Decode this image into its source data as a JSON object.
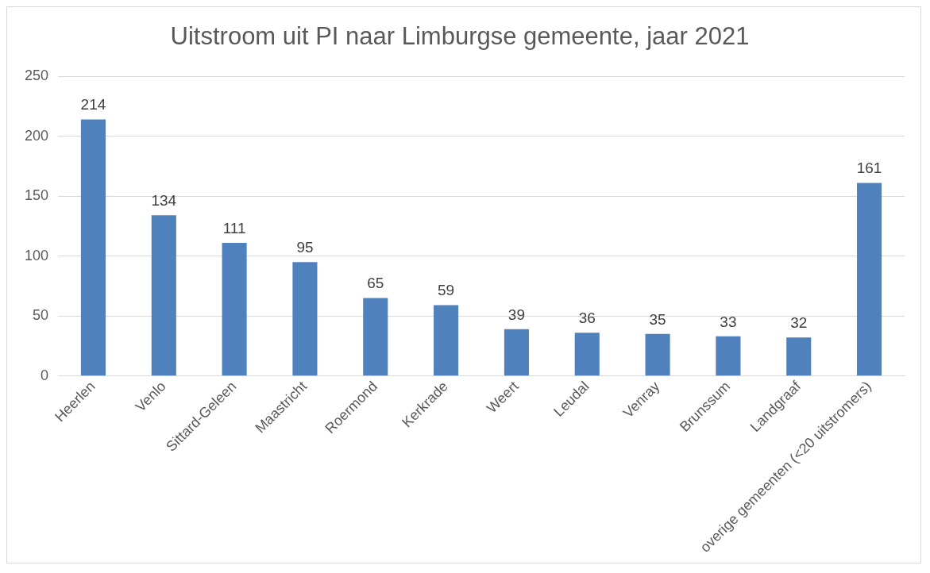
{
  "chart_data": {
    "type": "bar",
    "title": "Uitstroom uit PI naar Limburgse gemeente, jaar 2021",
    "categories": [
      "Heerlen",
      "Venlo",
      "Sittard-Geleen",
      "Maastricht",
      "Roermond",
      "Kerkrade",
      "Weert",
      "Leudal",
      "Venray",
      "Brunssum",
      "Landgraaf",
      "overige gemeenten (<20 uitstromers)"
    ],
    "values": [
      214,
      134,
      111,
      95,
      65,
      59,
      39,
      36,
      35,
      33,
      32,
      161
    ],
    "color": "#4f81bd",
    "ylim": [
      0,
      250
    ],
    "yticks": [
      0,
      50,
      100,
      150,
      200,
      250
    ],
    "grid": "y",
    "legend": false,
    "data_labels": true
  }
}
